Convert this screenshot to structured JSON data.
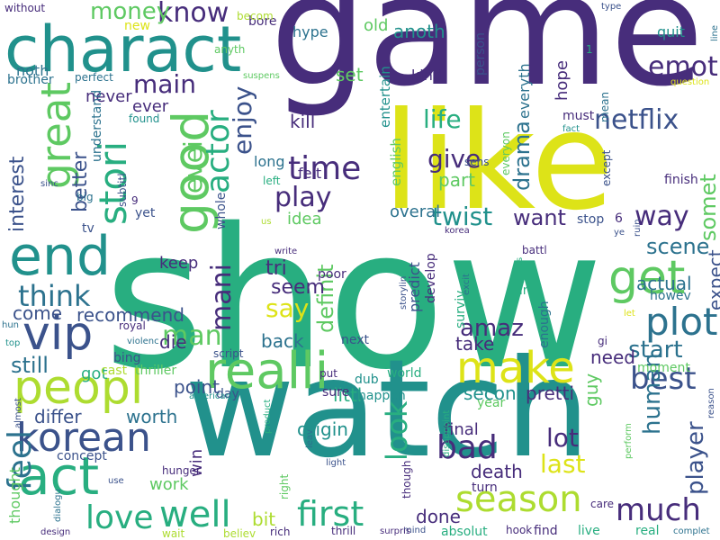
{
  "word_cloud": {
    "background": "#ffffff",
    "palette": [
      "#440154",
      "#472d7b",
      "#3b528b",
      "#2c728e",
      "#21918c",
      "#28ae80",
      "#5ec962",
      "#addc30",
      "#dde318"
    ],
    "words": [
      {
        "text": "show",
        "color": "#28ae80"
      },
      {
        "text": "watch",
        "color": "#21918c"
      },
      {
        "text": "game",
        "color": "#472d7b"
      },
      {
        "text": "like",
        "color": "#dde318"
      },
      {
        "text": "charact",
        "color": "#21918c"
      },
      {
        "text": "realli",
        "color": "#5ec962"
      },
      {
        "text": "end",
        "color": "#21918c"
      },
      {
        "text": "act",
        "color": "#28ae80"
      },
      {
        "text": "peopl",
        "color": "#addc30"
      },
      {
        "text": "make",
        "color": "#dde318"
      },
      {
        "text": "season",
        "color": "#addc30"
      },
      {
        "text": "korean",
        "color": "#3b528b"
      },
      {
        "text": "vip",
        "color": "#3b528b"
      },
      {
        "text": "good",
        "color": "#5ec962"
      },
      {
        "text": "great",
        "color": "#5ec962"
      },
      {
        "text": "stori",
        "color": "#28ae80"
      },
      {
        "text": "get",
        "color": "#5ec962"
      },
      {
        "text": "plot",
        "color": "#2c728e"
      },
      {
        "text": "time",
        "color": "#472d7b"
      },
      {
        "text": "first",
        "color": "#28ae80"
      },
      {
        "text": "well",
        "color": "#28ae80"
      },
      {
        "text": "love",
        "color": "#28ae80"
      },
      {
        "text": "much",
        "color": "#472d7b"
      },
      {
        "text": "bad",
        "color": "#472d7b"
      },
      {
        "text": "best",
        "color": "#3b528b"
      },
      {
        "text": "feel",
        "color": "#2c728e"
      },
      {
        "text": "know",
        "color": "#472d7b"
      },
      {
        "text": "think",
        "color": "#2c728e"
      },
      {
        "text": "play",
        "color": "#472d7b"
      },
      {
        "text": "way",
        "color": "#472d7b"
      },
      {
        "text": "netflix",
        "color": "#3b528b"
      },
      {
        "text": "actor",
        "color": "#28ae80"
      },
      {
        "text": "mani",
        "color": "#472d7b"
      },
      {
        "text": "enjoy",
        "color": "#3b528b"
      },
      {
        "text": "look",
        "color": "#28ae80"
      },
      {
        "text": "man",
        "color": "#5ec962"
      },
      {
        "text": "say",
        "color": "#dde318"
      },
      {
        "text": "emot",
        "color": "#472d7b"
      },
      {
        "text": "main",
        "color": "#472d7b"
      },
      {
        "text": "money",
        "color": "#5ec962"
      },
      {
        "text": "evei",
        "color": "#5ec962"
      },
      {
        "text": "life",
        "color": "#28ae80"
      },
      {
        "text": "give",
        "color": "#472d7b"
      },
      {
        "text": "want",
        "color": "#472d7b"
      },
      {
        "text": "twist",
        "color": "#21918c"
      },
      {
        "text": "scene",
        "color": "#2c728e"
      },
      {
        "text": "start",
        "color": "#2c728e"
      },
      {
        "text": "lot",
        "color": "#472d7b"
      },
      {
        "text": "last",
        "color": "#dde318"
      },
      {
        "text": "amaz",
        "color": "#472d7b"
      },
      {
        "text": "human",
        "color": "#2c728e"
      },
      {
        "text": "player",
        "color": "#3b528b"
      },
      {
        "text": "drama",
        "color": "#2c728e"
      },
      {
        "text": "interest",
        "color": "#3b528b"
      },
      {
        "text": "better",
        "color": "#3b528b"
      },
      {
        "text": "still",
        "color": "#2c728e"
      },
      {
        "text": "definit",
        "color": "#5ec962"
      },
      {
        "text": "somet",
        "color": "#5ec962"
      },
      {
        "text": "tri",
        "color": "#472d7b"
      },
      {
        "text": "seem",
        "color": "#472d7b"
      },
      {
        "text": "back",
        "color": "#2c728e"
      },
      {
        "text": "keep",
        "color": "#472d7b"
      },
      {
        "text": "actual",
        "color": "#2c728e"
      },
      {
        "text": "expect",
        "color": "#3b528b"
      },
      {
        "text": "recommend",
        "color": "#3b528b"
      },
      {
        "text": "come",
        "color": "#3b528b"
      },
      {
        "text": "die",
        "color": "#472d7b"
      },
      {
        "text": "point",
        "color": "#3b528b"
      },
      {
        "text": "worth",
        "color": "#2c728e"
      },
      {
        "text": "differ",
        "color": "#3b528b"
      },
      {
        "text": "second",
        "color": "#21918c"
      },
      {
        "text": "pretti",
        "color": "#472d7b"
      },
      {
        "text": "guy",
        "color": "#5ec962"
      },
      {
        "text": "need",
        "color": "#472d7b"
      },
      {
        "text": "final",
        "color": "#472d7b"
      },
      {
        "text": "death",
        "color": "#472d7b"
      },
      {
        "text": "origin",
        "color": "#21918c"
      },
      {
        "text": "work",
        "color": "#5ec962"
      },
      {
        "text": "win",
        "color": "#472d7b"
      },
      {
        "text": "bit",
        "color": "#addc30"
      },
      {
        "text": "done",
        "color": "#472d7b"
      },
      {
        "text": "take",
        "color": "#472d7b"
      },
      {
        "text": "littl",
        "color": "#28ae80"
      },
      {
        "text": "idea",
        "color": "#5ec962"
      },
      {
        "text": "overal",
        "color": "#2c728e"
      },
      {
        "text": "part",
        "color": "#5ec962"
      },
      {
        "text": "got",
        "color": "#28ae80"
      },
      {
        "text": "kill",
        "color": "#472d7b"
      },
      {
        "text": "set",
        "color": "#5ec962"
      },
      {
        "text": "old",
        "color": "#5ec962"
      },
      {
        "text": "anoth",
        "color": "#21918c"
      },
      {
        "text": "kind",
        "color": "#472d7b"
      },
      {
        "text": "hope",
        "color": "#472d7b"
      },
      {
        "text": "everyth",
        "color": "#2c728e"
      },
      {
        "text": "person",
        "color": "#3b528b"
      },
      {
        "text": "entertain",
        "color": "#21918c"
      },
      {
        "text": "english",
        "color": "#5ec962"
      },
      {
        "text": "felt",
        "color": "#472d7b"
      },
      {
        "text": "long",
        "color": "#2c728e"
      },
      {
        "text": "ever",
        "color": "#472d7b"
      },
      {
        "text": "never",
        "color": "#472d7b"
      },
      {
        "text": "noth",
        "color": "#2c728e"
      },
      {
        "text": "brother",
        "color": "#2c728e"
      },
      {
        "text": "hype",
        "color": "#2c728e"
      },
      {
        "text": "bore",
        "color": "#472d7b"
      },
      {
        "text": "quit",
        "color": "#21918c"
      },
      {
        "text": "predict",
        "color": "#3b528b"
      },
      {
        "text": "develop",
        "color": "#472d7b"
      },
      {
        "text": "surviv",
        "color": "#28ae80"
      },
      {
        "text": "enough",
        "color": "#2c728e"
      },
      {
        "text": "happen",
        "color": "#21918c"
      },
      {
        "text": "year",
        "color": "#5ec962"
      },
      {
        "text": "world",
        "color": "#28ae80"
      },
      {
        "text": "dub",
        "color": "#21918c"
      },
      {
        "text": "sure",
        "color": "#472d7b"
      },
      {
        "text": "next",
        "color": "#3b528b"
      },
      {
        "text": "day",
        "color": "#3b528b"
      },
      {
        "text": "thought",
        "color": "#5ec962"
      },
      {
        "text": "concept",
        "color": "#3b528b"
      },
      {
        "text": "yet",
        "color": "#3b528b"
      },
      {
        "text": "tv",
        "color": "#3b528b"
      },
      {
        "text": "whole",
        "color": "#3b528b"
      },
      {
        "text": "bing",
        "color": "#3b528b"
      },
      {
        "text": "cast",
        "color": "#addc30"
      },
      {
        "text": "thriller",
        "color": "#5ec962"
      },
      {
        "text": "turn",
        "color": "#472d7b"
      },
      {
        "text": "absolut",
        "color": "#28ae80"
      },
      {
        "text": "find",
        "color": "#472d7b"
      },
      {
        "text": "live",
        "color": "#28ae80"
      },
      {
        "text": "real",
        "color": "#28ae80"
      },
      {
        "text": "rich",
        "color": "#472d7b"
      },
      {
        "text": "thrill",
        "color": "#472d7b"
      },
      {
        "text": "right",
        "color": "#5ec962"
      },
      {
        "text": "though",
        "color": "#472d7b"
      },
      {
        "text": "hook",
        "color": "#472d7b"
      },
      {
        "text": "believ",
        "color": "#addc30"
      },
      {
        "text": "wait",
        "color": "#addc30"
      },
      {
        "text": "mind",
        "color": "#3b528b"
      },
      {
        "text": "hunger",
        "color": "#472d7b"
      },
      {
        "text": "stop",
        "color": "#3b528b"
      },
      {
        "text": "fun",
        "color": "#28ae80"
      },
      {
        "text": "howev",
        "color": "#2c728e"
      },
      {
        "text": "moment",
        "color": "#5ec962"
      },
      {
        "text": "finish",
        "color": "#472d7b"
      },
      {
        "text": "except",
        "color": "#3b528b"
      },
      {
        "text": "must",
        "color": "#472d7b"
      },
      {
        "text": "mean",
        "color": "#2c728e"
      },
      {
        "text": "understand",
        "color": "#2c728e"
      },
      {
        "text": "found",
        "color": "#21918c"
      },
      {
        "text": "perfect",
        "color": "#2c728e"
      },
      {
        "text": "big",
        "color": "#2c728e"
      },
      {
        "text": "poor",
        "color": "#472d7b"
      },
      {
        "text": "left",
        "color": "#28ae80"
      },
      {
        "text": "new",
        "color": "#dde318"
      },
      {
        "text": "without",
        "color": "#472d7b"
      },
      {
        "text": "becom",
        "color": "#addc30"
      },
      {
        "text": "anyth",
        "color": "#5ec962"
      },
      {
        "text": "suspens",
        "color": "#5ec962"
      },
      {
        "text": "subtitl",
        "color": "#3b528b"
      },
      {
        "text": "sinc",
        "color": "#3b528b"
      },
      {
        "text": "script",
        "color": "#3b528b"
      },
      {
        "text": "royal",
        "color": "#472d7b"
      },
      {
        "text": "violenc",
        "color": "#2c728e"
      },
      {
        "text": "hun",
        "color": "#2c728e"
      },
      {
        "text": "top",
        "color": "#21918c"
      },
      {
        "text": "almost",
        "color": "#3b528b"
      },
      {
        "text": "dialogu",
        "color": "#2c728e"
      },
      {
        "text": "design",
        "color": "#472d7b"
      },
      {
        "text": "american",
        "color": "#21918c"
      },
      {
        "text": "product",
        "color": "#28ae80"
      },
      {
        "text": "leav",
        "color": "#2c728e"
      },
      {
        "text": "write",
        "color": "#472d7b"
      },
      {
        "text": "us",
        "color": "#addc30"
      },
      {
        "text": "use",
        "color": "#3b528b"
      },
      {
        "text": "put",
        "color": "#472d7b"
      },
      {
        "text": "storylin",
        "color": "#3b528b"
      },
      {
        "text": "excit",
        "color": "#2c728e"
      },
      {
        "text": "korea",
        "color": "#472d7b"
      },
      {
        "text": "guess",
        "color": "#28ae80"
      },
      {
        "text": "battl",
        "color": "#472d7b"
      },
      {
        "text": "ruin",
        "color": "#3b528b"
      },
      {
        "text": "ye",
        "color": "#3b528b"
      },
      {
        "text": "let",
        "color": "#dde318"
      },
      {
        "text": "gi",
        "color": "#472d7b"
      },
      {
        "text": "light",
        "color": "#3b528b"
      },
      {
        "text": "disappoint",
        "color": "#28ae80"
      },
      {
        "text": "surpris",
        "color": "#472d7b"
      },
      {
        "text": "care",
        "color": "#472d7b"
      },
      {
        "text": "complet",
        "color": "#2c728e"
      },
      {
        "text": "perform",
        "color": "#5ec962"
      },
      {
        "text": "reason",
        "color": "#3b528b"
      },
      {
        "text": "fact",
        "color": "#21918c"
      },
      {
        "text": "sens",
        "color": "#3b528b"
      },
      {
        "text": "everyon",
        "color": "#5ec962"
      },
      {
        "text": "question",
        "color": "#dde318"
      },
      {
        "text": "type",
        "color": "#3b528b"
      },
      {
        "text": "line",
        "color": "#2c728e"
      },
      {
        "text": "1",
        "color": "#28ae80"
      },
      {
        "text": "6",
        "color": "#472d7b"
      },
      {
        "text": "9",
        "color": "#472d7b"
      }
    ]
  }
}
